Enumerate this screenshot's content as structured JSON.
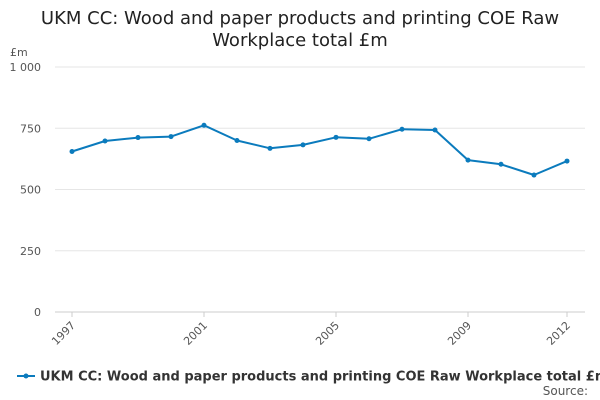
{
  "chart_data": {
    "type": "line",
    "title": "UKM CC: Wood and paper products and printing COE Raw Workplace total £m",
    "title_lines": [
      "UKM CC: Wood and paper products and printing COE Raw",
      "Workplace total £m"
    ],
    "ylabel": "£m",
    "xlabel": "",
    "ylim": [
      0,
      1000
    ],
    "yticks": [
      0,
      250,
      500,
      750,
      1000
    ],
    "ytick_labels": [
      "0",
      "250",
      "500",
      "750",
      "1 000"
    ],
    "xlim": [
      1997,
      2012
    ],
    "xticks": [
      1997,
      2001,
      2005,
      2009,
      2012
    ],
    "xtick_labels": [
      "1997",
      "2001",
      "2005",
      "2009",
      "2012"
    ],
    "grid": true,
    "legend_position": "bottom",
    "series": [
      {
        "name": "UKM CC: Wood and paper products and printing COE Raw Workplace total £m",
        "color": "#0b7bbd",
        "x": [
          1997,
          1998,
          1999,
          2000,
          2001,
          2002,
          2003,
          2004,
          2005,
          2006,
          2007,
          2008,
          2009,
          2010,
          2011,
          2012
        ],
        "values": [
          655,
          698,
          712,
          716,
          762,
          700,
          668,
          682,
          713,
          707,
          746,
          743,
          620,
          603,
          559,
          616
        ]
      }
    ]
  },
  "footer": {
    "source_label": "Source:"
  }
}
